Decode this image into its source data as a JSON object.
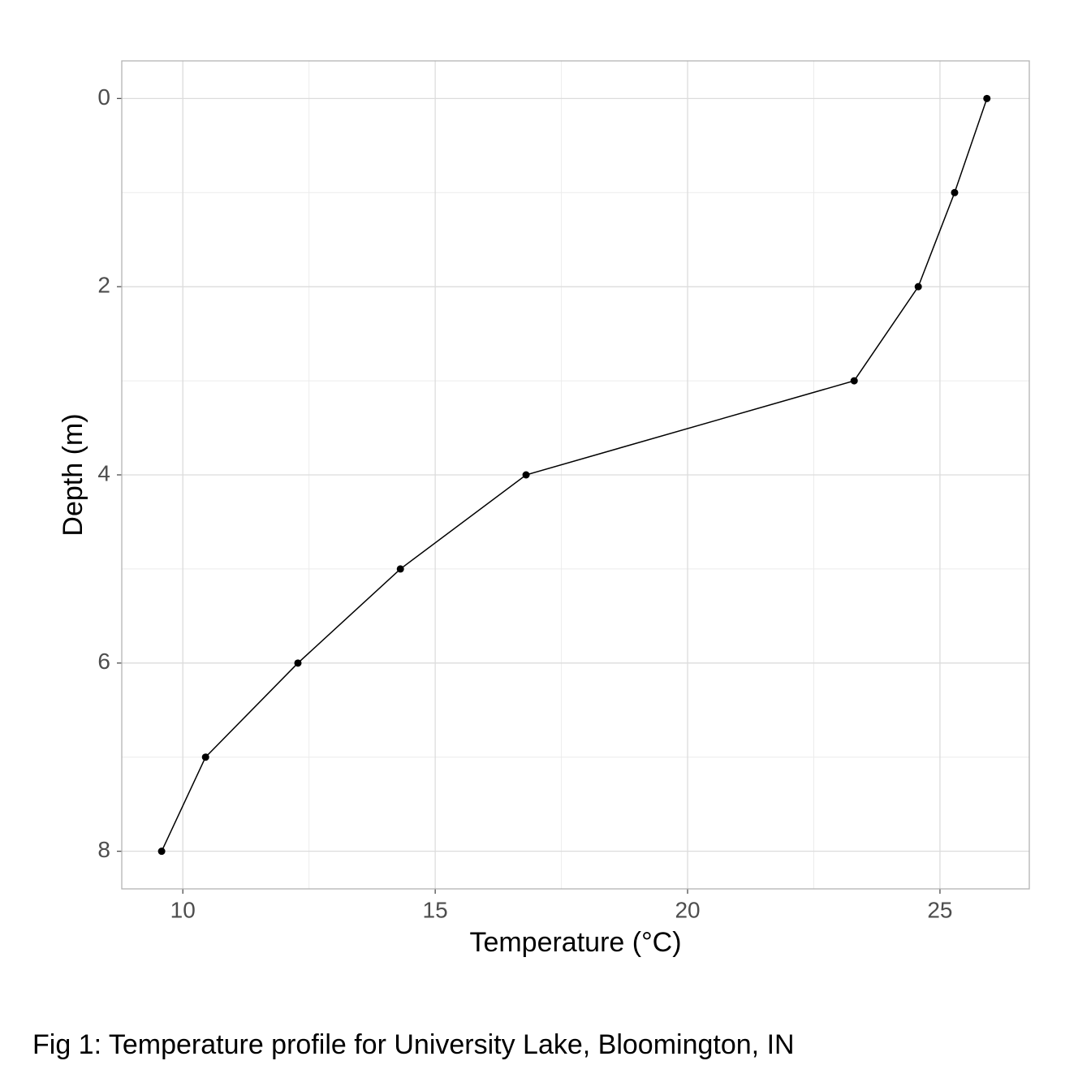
{
  "chart_data": {
    "type": "line",
    "xlabel": "Temperature (°C)",
    "ylabel": "Depth (m)",
    "caption": "Fig 1: Temperature profile for University Lake, Bloomington, IN",
    "x": [
      25.93,
      25.29,
      24.57,
      23.3,
      16.8,
      14.31,
      12.28,
      10.45,
      9.58
    ],
    "values": [
      0,
      1,
      2,
      3,
      4,
      5,
      6,
      7,
      8
    ],
    "color": "#000000",
    "markers": true,
    "xlim": [
      8.79,
      26.77
    ],
    "xticks": [
      10,
      15,
      20,
      25
    ],
    "xminor": [
      12.5,
      17.5,
      22.5
    ],
    "ylim": [
      -0.4,
      8.4
    ],
    "yticks": [
      0,
      2,
      4,
      6,
      8
    ],
    "yminor": [
      1,
      3,
      5,
      7
    ],
    "yreverse": true,
    "grid": true
  }
}
